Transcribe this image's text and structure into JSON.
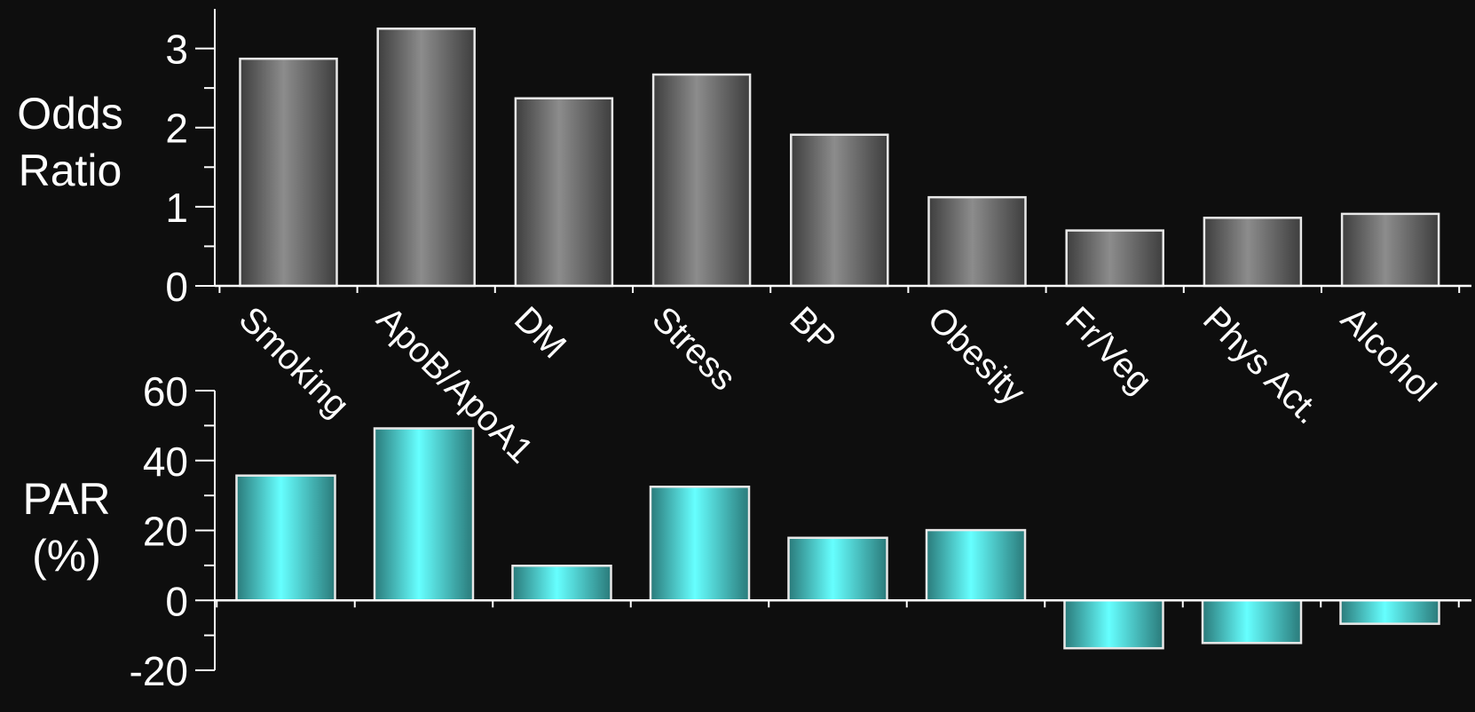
{
  "chart_data": [
    {
      "type": "bar",
      "categories": [
        "Smoking",
        "ApoB/ApoA1",
        "DM",
        "Stress",
        "BP",
        "Obesity",
        "Fr/Veg",
        "Phys Act.",
        "Alcohol"
      ],
      "values": [
        2.87,
        3.25,
        2.37,
        2.67,
        1.91,
        1.12,
        0.7,
        0.86,
        0.91
      ],
      "ylabel_lines": [
        "Odds",
        "Ratio"
      ],
      "ylim": [
        0,
        3.5
      ],
      "yticks": [
        "0",
        "1",
        "2",
        "3"
      ],
      "colors": {
        "bar_edge": "#e8e8e8",
        "bar_mid": "#8c8c8c",
        "bar_side": "#3e3e3e"
      }
    },
    {
      "type": "bar",
      "categories": [
        "Smoking",
        "ApoB/ApoA1",
        "DM",
        "Stress",
        "BP",
        "Obesity",
        "Fr/Veg",
        "Phys Act.",
        "Alcohol"
      ],
      "values": [
        35.7,
        49.2,
        9.9,
        32.5,
        17.9,
        20.1,
        -13.7,
        -12.2,
        -6.7
      ],
      "ylabel_lines": [
        "PAR",
        "(%)"
      ],
      "ylim": [
        -20,
        60
      ],
      "yticks": [
        "60",
        "40",
        "20",
        "0",
        "-20"
      ],
      "colors": {
        "bar_edge": "#e8e8e8",
        "bar_mid": "#66ffff",
        "bar_side": "#2a7a7a"
      }
    }
  ]
}
